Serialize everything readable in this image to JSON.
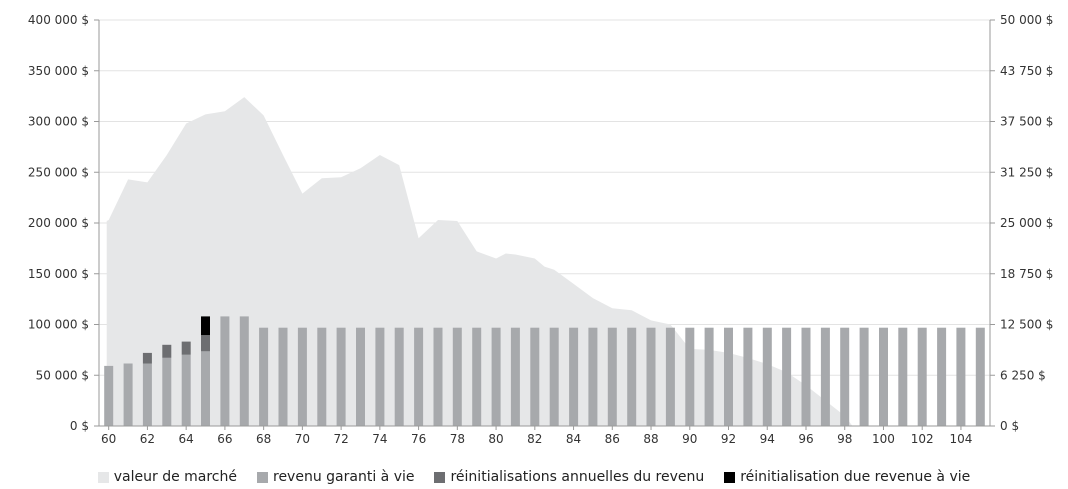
{
  "chart_data": {
    "type": "bar",
    "x": [
      60,
      61,
      62,
      63,
      64,
      65,
      66,
      67,
      68,
      69,
      70,
      71,
      72,
      73,
      74,
      75,
      76,
      77,
      78,
      79,
      80,
      81,
      82,
      83,
      84,
      85,
      86,
      87,
      88,
      89,
      90,
      91,
      92,
      93,
      94,
      95,
      96,
      97,
      98,
      99,
      100,
      101,
      102,
      103,
      104,
      105
    ],
    "x_tick_labels": [
      "60",
      "62",
      "64",
      "66",
      "68",
      "70",
      "72",
      "74",
      "76",
      "78",
      "80",
      "82",
      "84",
      "86",
      "88",
      "90",
      "92",
      "94",
      "96",
      "98",
      "100",
      "102",
      "104"
    ],
    "left_axis": {
      "ylim": [
        0,
        400000
      ],
      "ticks": [
        0,
        50000,
        100000,
        150000,
        200000,
        250000,
        300000,
        350000,
        400000
      ],
      "tick_labels": [
        "0 $",
        "50 000 $",
        "100 000 $",
        "150 000 $",
        "200 000 $",
        "250 000 $",
        "300 000 $",
        "350 000 $",
        "400 000 $"
      ]
    },
    "right_axis": {
      "ylim": [
        0,
        50000
      ],
      "ticks": [
        0,
        6250,
        12500,
        18750,
        25000,
        31250,
        37500,
        43750,
        50000
      ],
      "tick_labels": [
        "0 $",
        "6 250 $",
        "12 500 $",
        "18 750 $",
        "25 000 $",
        "31 250 $",
        "37 500 $",
        "43 750 $",
        "50 000 $"
      ]
    },
    "area": {
      "name": "valeur de marché",
      "axis": "left",
      "color": "#e6e7e8",
      "x": [
        59.9,
        60,
        61,
        62,
        63,
        64,
        65,
        66,
        67,
        68,
        69,
        70,
        71,
        72,
        73,
        74,
        75,
        76,
        77,
        78,
        79,
        80,
        80.5,
        81,
        82,
        82.5,
        83,
        84,
        85,
        86,
        87,
        88,
        89,
        90,
        91,
        92,
        93,
        94,
        95,
        96,
        97,
        98,
        98.4
      ],
      "values": [
        202000,
        203000,
        243000,
        240000,
        267000,
        298000,
        307000,
        310000,
        324000,
        306000,
        267000,
        229000,
        244000,
        245000,
        254000,
        267000,
        257000,
        185000,
        203000,
        202000,
        172000,
        165000,
        170000,
        169000,
        165000,
        157000,
        154000,
        140000,
        126000,
        116000,
        114000,
        104000,
        100000,
        76000,
        75000,
        72000,
        67000,
        61000,
        53000,
        40000,
        25000,
        10000,
        0
      ]
    },
    "series": [
      {
        "name": "revenu garanti à vie",
        "axis": "right",
        "color": "#a7a9ac",
        "values": [
          7400,
          7700,
          7700,
          8400,
          8800,
          9200,
          13500,
          13500,
          12100,
          12100,
          12100,
          12100,
          12100,
          12100,
          12100,
          12100,
          12100,
          12100,
          12100,
          12100,
          12100,
          12100,
          12100,
          12100,
          12100,
          12100,
          12100,
          12100,
          12100,
          12100,
          12100,
          12100,
          12100,
          12100,
          12100,
          12100,
          12100,
          12100,
          12100,
          12100,
          12100,
          12100,
          12100,
          12100,
          12100,
          12100
        ]
      },
      {
        "name": "réinitialisations annuelles du revenu",
        "axis": "right",
        "color": "#6d6e71",
        "values": [
          0,
          0,
          1300,
          1600,
          1600,
          2000,
          0,
          0,
          0,
          0,
          0,
          0,
          0,
          0,
          0,
          0,
          0,
          0,
          0,
          0,
          0,
          0,
          0,
          0,
          0,
          0,
          0,
          0,
          0,
          0,
          0,
          0,
          0,
          0,
          0,
          0,
          0,
          0,
          0,
          0,
          0,
          0,
          0,
          0,
          0,
          0
        ]
      },
      {
        "name": "réinitialisation due revenue à vie",
        "axis": "right",
        "color": "#000000",
        "values": [
          0,
          0,
          0,
          0,
          0,
          2300,
          0,
          0,
          0,
          0,
          0,
          0,
          0,
          0,
          0,
          0,
          0,
          0,
          0,
          0,
          0,
          0,
          0,
          0,
          0,
          0,
          0,
          0,
          0,
          0,
          0,
          0,
          0,
          0,
          0,
          0,
          0,
          0,
          0,
          0,
          0,
          0,
          0,
          0,
          0,
          0
        ]
      }
    ],
    "legend": [
      {
        "label": "valeur de marché",
        "color": "#e6e7e8"
      },
      {
        "label": "revenu garanti à vie",
        "color": "#a7a9ac"
      },
      {
        "label": "réinitialisations annuelles du revenu",
        "color": "#6d6e71"
      },
      {
        "label": "réinitialisation due revenue à vie",
        "color": "#000000"
      }
    ],
    "legend_position": "bottom",
    "grid": true
  }
}
